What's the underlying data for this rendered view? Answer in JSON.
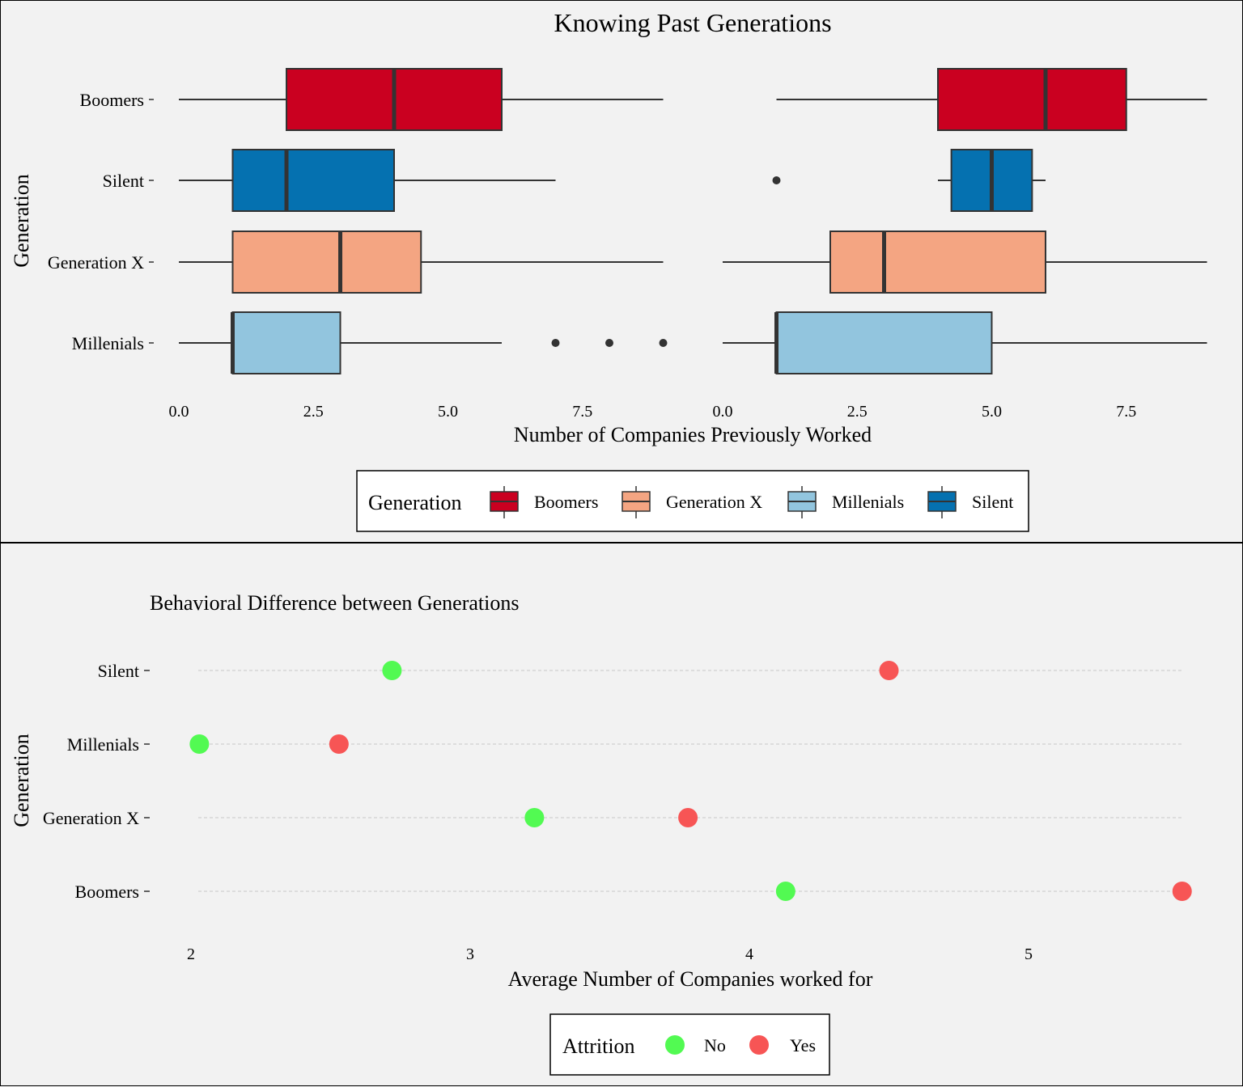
{
  "chart_data": [
    {
      "type": "boxplot",
      "title": "Knowing Past Generations",
      "xlabel": "Number of Companies Previously Worked",
      "ylabel": "Generation",
      "categories": [
        "Boomers",
        "Silent",
        "Generation X",
        "Millenials"
      ],
      "panels": [
        {
          "xlim": [
            0,
            9
          ],
          "xticks": [
            0,
            2.5,
            5,
            7.5
          ],
          "xtick_labels": [
            "0.0",
            "2.5",
            "5.0",
            "7.5"
          ],
          "boxes": [
            {
              "category": "Boomers",
              "whisker_low": 0,
              "q1": 2,
              "median": 4,
              "q3": 6,
              "whisker_high": 9,
              "outliers": []
            },
            {
              "category": "Silent",
              "whisker_low": 0,
              "q1": 1,
              "median": 2,
              "q3": 4,
              "whisker_high": 7,
              "outliers": []
            },
            {
              "category": "Generation X",
              "whisker_low": 0,
              "q1": 1,
              "median": 3,
              "q3": 4.5,
              "whisker_high": 9,
              "outliers": []
            },
            {
              "category": "Millenials",
              "whisker_low": 0,
              "q1": 1,
              "median": 1,
              "q3": 3,
              "whisker_high": 6,
              "outliers": [
                7,
                8,
                9
              ]
            }
          ]
        },
        {
          "xlim": [
            0,
            9
          ],
          "xticks": [
            0,
            2.5,
            5,
            7.5
          ],
          "xtick_labels": [
            "0.0",
            "2.5",
            "5.0",
            "7.5"
          ],
          "boxes": [
            {
              "category": "Boomers",
              "whisker_low": 1,
              "q1": 4,
              "median": 6,
              "q3": 7.5,
              "whisker_high": 9,
              "outliers": []
            },
            {
              "category": "Silent",
              "whisker_low": 4,
              "q1": 4.25,
              "median": 5,
              "q3": 5.75,
              "whisker_high": 6,
              "outliers": [
                1
              ]
            },
            {
              "category": "Generation X",
              "whisker_low": 0,
              "q1": 2,
              "median": 3,
              "q3": 6,
              "whisker_high": 9,
              "outliers": []
            },
            {
              "category": "Millenials",
              "whisker_low": 0,
              "q1": 1,
              "median": 1,
              "q3": 5,
              "whisker_high": 9,
              "outliers": []
            }
          ]
        }
      ],
      "legend": {
        "title": "Generation",
        "position": "bottom",
        "items": [
          {
            "label": "Boomers",
            "color": "#ca0020"
          },
          {
            "label": "Generation X",
            "color": "#f4a582"
          },
          {
            "label": "Millenials",
            "color": "#92c5de"
          },
          {
            "label": "Silent",
            "color": "#0571b0"
          }
        ]
      },
      "grid": false
    },
    {
      "type": "scatter",
      "title": "Behavioral Difference between Generations",
      "xlabel": "Average Number of Companies worked for",
      "ylabel": "Generation",
      "categories": [
        "Silent",
        "Millenials",
        "Generation X",
        "Boomers"
      ],
      "xlim": [
        1.97,
        5.6
      ],
      "xticks": [
        2,
        3,
        4,
        5
      ],
      "series": [
        {
          "name": "No",
          "color": "#52fa52",
          "values": [
            2.72,
            2.03,
            3.23,
            4.13
          ]
        },
        {
          "name": "Yes",
          "color": "#f75555",
          "values": [
            4.5,
            2.53,
            3.78,
            5.55
          ]
        }
      ],
      "legend": {
        "title": "Attrition",
        "position": "bottom",
        "items": [
          {
            "label": "No",
            "color": "#52fa52"
          },
          {
            "label": "Yes",
            "color": "#f75555"
          }
        ]
      },
      "grid": "horizontal dashed"
    }
  ]
}
